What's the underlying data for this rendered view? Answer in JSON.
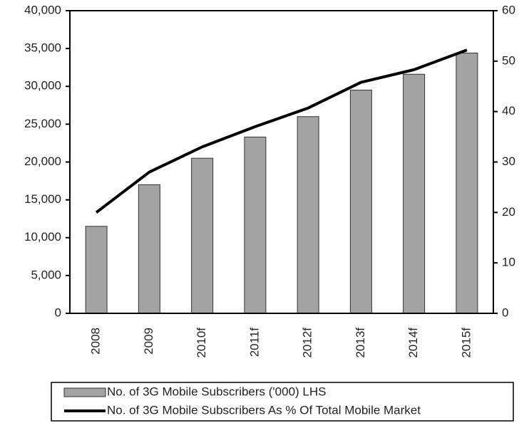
{
  "chart_data": {
    "type": "bar-line",
    "categories": [
      "2008",
      "2009",
      "2010f",
      "2011f",
      "2012f",
      "2013f",
      "2014f",
      "2015f"
    ],
    "series": [
      {
        "name": "No. of 3G Mobile Subscribers ('000) LHS",
        "type": "bar",
        "color": "#a3a3a3",
        "values": [
          11500,
          17000,
          20500,
          23300,
          26000,
          29500,
          31600,
          34400
        ]
      },
      {
        "name": "No. of 3G Mobile Subscribers As % Of Total Mobile Market",
        "type": "line",
        "axis": "y2",
        "color": "#000000",
        "values": [
          20,
          28,
          33,
          37,
          40.7,
          45.8,
          48.3,
          52.2
        ]
      }
    ],
    "ylim": [
      0,
      40000
    ],
    "yticks": [
      0,
      {
        "value": 5000,
        "label": "5,000"
      },
      {
        "value": 10000,
        "label": "10,000"
      },
      {
        "value": 15000,
        "label": "15,000"
      },
      {
        "value": 20000,
        "label": "20,000"
      },
      {
        "value": 25000,
        "label": "25,000"
      },
      {
        "value": 30000,
        "label": "30,000"
      },
      {
        "value": 35000,
        "label": "35,000"
      },
      {
        "value": 40000,
        "label": "40,000"
      }
    ],
    "y2lim": [
      0,
      60
    ],
    "y2ticks": [
      0,
      10,
      20,
      30,
      40,
      50,
      60
    ],
    "legend": "bottom"
  }
}
